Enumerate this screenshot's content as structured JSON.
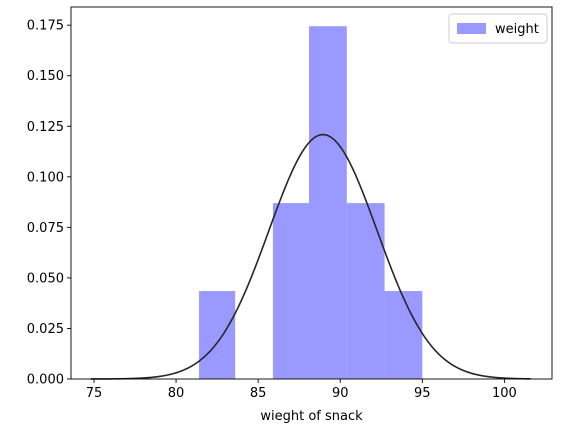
{
  "chart_data": {
    "type": "bar",
    "subtype": "histogram-with-density-curve",
    "title": "",
    "xlabel": "wieght of snack",
    "ylabel": "",
    "xlim": [
      73.6,
      102.9
    ],
    "ylim": [
      0.0,
      0.184
    ],
    "xticks": [
      75,
      80,
      85,
      90,
      95,
      100
    ],
    "yticks": [
      0.0,
      0.025,
      0.05,
      0.075,
      0.1,
      0.125,
      0.15,
      0.175
    ],
    "ytick_labels": [
      "0.000",
      "0.025",
      "0.050",
      "0.075",
      "0.100",
      "0.125",
      "0.150",
      "0.175"
    ],
    "grid": false,
    "legend": {
      "position": "top-right",
      "entries": [
        "weight"
      ]
    },
    "histogram": {
      "name": "weight",
      "color": "#9999ff",
      "bins": [
        {
          "x0": 81.4,
          "x1": 83.6,
          "density": 0.0435
        },
        {
          "x0": 83.6,
          "x1": 85.9,
          "density": 0.0
        },
        {
          "x0": 85.9,
          "x1": 88.1,
          "density": 0.087
        },
        {
          "x0": 88.1,
          "x1": 90.4,
          "density": 0.1745
        },
        {
          "x0": 90.4,
          "x1": 92.7,
          "density": 0.087
        },
        {
          "x0": 92.7,
          "x1": 95.0,
          "density": 0.0435
        }
      ]
    },
    "density_curve": {
      "color": "#262626",
      "mean": 88.95,
      "std": 3.3,
      "x_range": [
        74.8,
        101.6
      ]
    }
  }
}
